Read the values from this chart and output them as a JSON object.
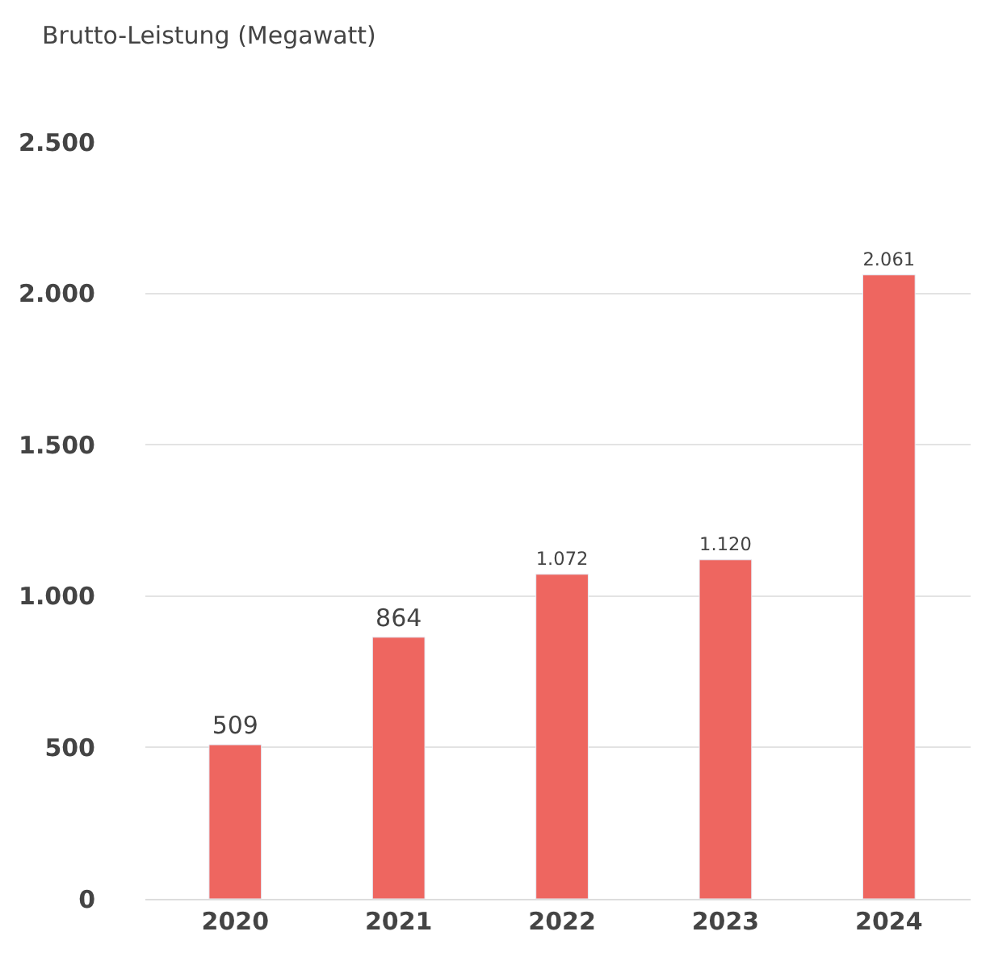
{
  "chart_data": {
    "type": "bar",
    "ylabel": "Brutto-Leistung (Megawatt)",
    "categories": [
      "2020",
      "2021",
      "2022",
      "2023",
      "2024"
    ],
    "values": [
      509,
      864,
      1072,
      1120,
      2061
    ],
    "value_labels": [
      "509",
      "864",
      "1.072",
      "1.120",
      "2.061"
    ],
    "color": "#ee6660",
    "ylim": [
      0,
      2500
    ],
    "yticks": [
      {
        "value": 0,
        "label": "0"
      },
      {
        "value": 500,
        "label": "500"
      },
      {
        "value": 1000,
        "label": "1.000"
      },
      {
        "value": 1500,
        "label": "1.500"
      },
      {
        "value": 2000,
        "label": "2.000"
      },
      {
        "value": 2500,
        "label": "2.500"
      }
    ],
    "grid": "y"
  }
}
